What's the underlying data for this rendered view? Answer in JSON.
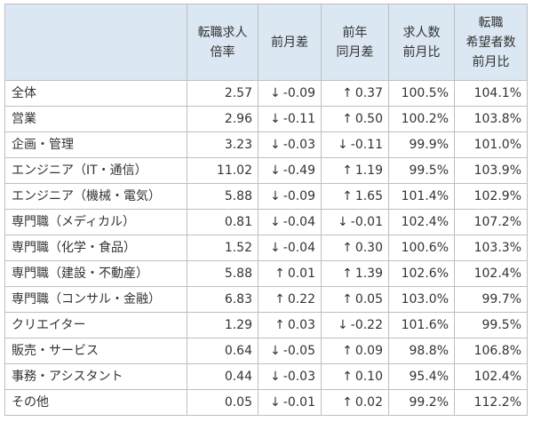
{
  "table": {
    "headers": [
      [],
      [
        "転職求人",
        "倍率"
      ],
      [
        "前月差"
      ],
      [
        "前年",
        "同月差"
      ],
      [
        "求人数",
        "前月比"
      ],
      [
        "転職",
        "希望者数",
        "前月比"
      ]
    ],
    "rows": [
      {
        "category": "全体",
        "ratio": "2.57",
        "mom_arrow": "↓",
        "mom": "-0.09",
        "yoy_arrow": "↑",
        "yoy": "0.37",
        "jobs_mom": "100.5%",
        "seekers_mom": "104.1%"
      },
      {
        "category": "営業",
        "ratio": "2.96",
        "mom_arrow": "↓",
        "mom": "-0.11",
        "yoy_arrow": "↑",
        "yoy": "0.50",
        "jobs_mom": "100.2%",
        "seekers_mom": "103.8%"
      },
      {
        "category": "企画・管理",
        "ratio": "3.23",
        "mom_arrow": "↓",
        "mom": "-0.03",
        "yoy_arrow": "↓",
        "yoy": "-0.11",
        "jobs_mom": "99.9%",
        "seekers_mom": "101.0%"
      },
      {
        "category": "エンジニア（IT・通信）",
        "ratio": "11.02",
        "mom_arrow": "↓",
        "mom": "-0.49",
        "yoy_arrow": "↑",
        "yoy": "1.19",
        "jobs_mom": "99.5%",
        "seekers_mom": "103.9%"
      },
      {
        "category": "エンジニア（機械・電気）",
        "ratio": "5.88",
        "mom_arrow": "↓",
        "mom": "-0.09",
        "yoy_arrow": "↑",
        "yoy": "1.65",
        "jobs_mom": "101.4%",
        "seekers_mom": "102.9%"
      },
      {
        "category": "専門職（メディカル）",
        "ratio": "0.81",
        "mom_arrow": "↓",
        "mom": "-0.04",
        "yoy_arrow": "↓",
        "yoy": "-0.01",
        "jobs_mom": "102.4%",
        "seekers_mom": "107.2%"
      },
      {
        "category": "専門職（化学・食品）",
        "ratio": "1.52",
        "mom_arrow": "↓",
        "mom": "-0.04",
        "yoy_arrow": "↑",
        "yoy": "0.30",
        "jobs_mom": "100.6%",
        "seekers_mom": "103.3%"
      },
      {
        "category": "専門職（建設・不動産）",
        "ratio": "5.88",
        "mom_arrow": "↑",
        "mom": "0.01",
        "yoy_arrow": "↑",
        "yoy": "1.39",
        "jobs_mom": "102.6%",
        "seekers_mom": "102.4%"
      },
      {
        "category": "専門職（コンサル・金融）",
        "ratio": "6.83",
        "mom_arrow": "↑",
        "mom": "0.22",
        "yoy_arrow": "↑",
        "yoy": "0.05",
        "jobs_mom": "103.0%",
        "seekers_mom": "99.7%"
      },
      {
        "category": "クリエイター",
        "ratio": "1.29",
        "mom_arrow": "↑",
        "mom": "0.03",
        "yoy_arrow": "↓",
        "yoy": "-0.22",
        "jobs_mom": "101.6%",
        "seekers_mom": "99.5%"
      },
      {
        "category": "販売・サービス",
        "ratio": "0.64",
        "mom_arrow": "↓",
        "mom": "-0.05",
        "yoy_arrow": "↑",
        "yoy": "0.09",
        "jobs_mom": "98.8%",
        "seekers_mom": "106.8%"
      },
      {
        "category": "事務・アシスタント",
        "ratio": "0.44",
        "mom_arrow": "↓",
        "mom": "-0.03",
        "yoy_arrow": "↑",
        "yoy": "0.10",
        "jobs_mom": "95.4%",
        "seekers_mom": "102.4%"
      },
      {
        "category": "その他",
        "ratio": "0.05",
        "mom_arrow": "↓",
        "mom": "-0.01",
        "yoy_arrow": "↑",
        "yoy": "0.02",
        "jobs_mom": "99.2%",
        "seekers_mom": "112.2%"
      }
    ]
  },
  "colors": {
    "header_bg": "#dbe7f2",
    "border": "#bfbfbf",
    "text": "#333333"
  }
}
